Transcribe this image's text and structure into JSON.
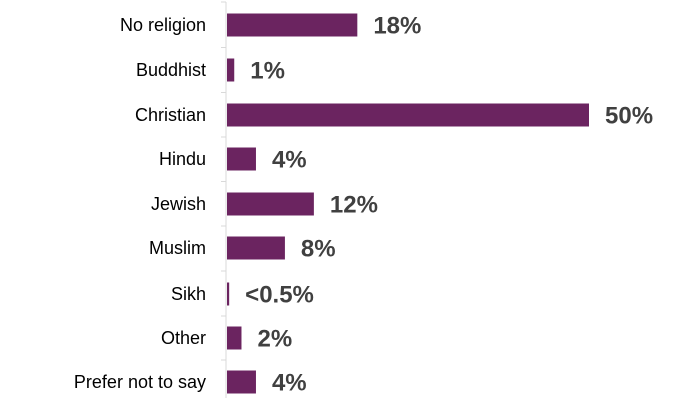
{
  "chart_data": {
    "type": "bar",
    "orientation": "horizontal",
    "categories": [
      "No religion",
      "Buddhist",
      "Christian",
      "Hindu",
      "Jewish",
      "Muslim",
      "Sikh",
      "Other",
      "Prefer not to say"
    ],
    "values": [
      18,
      1,
      50,
      4,
      12,
      8,
      0.3,
      2,
      4
    ],
    "value_labels": [
      "18%",
      "1%",
      "50%",
      "4%",
      "12%",
      "8%",
      "<0.5%",
      "2%",
      "4%"
    ],
    "title": "",
    "xlabel": "",
    "ylabel": "",
    "xlim": [
      0,
      50
    ],
    "grid": false,
    "legend": "none",
    "colors": {
      "bar": "#6B2460",
      "value_text": "#404040",
      "category_text": "#000000",
      "axis": "#D9D9D9"
    }
  }
}
